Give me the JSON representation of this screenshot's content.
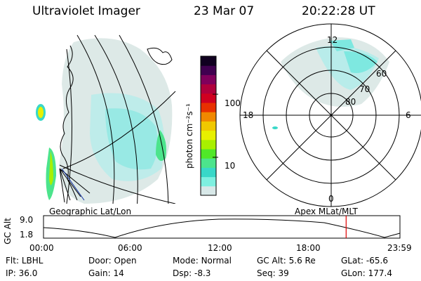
{
  "header": {
    "instrument": "Ultraviolet Imager",
    "date": "23 Mar 07",
    "time": "20:22:28 UT"
  },
  "colorbar": {
    "unit_label": "photon cm⁻²s⁻¹",
    "tick_labels": [
      "100",
      "10"
    ],
    "tick_values": [
      100,
      10
    ],
    "range": [
      2.5,
      400
    ],
    "colors": [
      "#d8e8e8",
      "#7ef0e0",
      "#38d8c8",
      "#4ce48c",
      "#50e828",
      "#a8f000",
      "#e8f000",
      "#f0c800",
      "#f08800",
      "#e83000",
      "#d00020",
      "#b0003c",
      "#80005c",
      "#400050",
      "#100020"
    ]
  },
  "geo_panel": {
    "label": "Geographic Lat/Lon"
  },
  "polar_panel": {
    "label": "Apex MLat/MLT",
    "mlt_labels": {
      "top": "12",
      "left": "18",
      "right": "6",
      "bottom": "0"
    },
    "lat_labels": [
      "80",
      "70",
      "60"
    ]
  },
  "altitude_plot": {
    "axis_label": "GC Alt",
    "y_ticks": [
      "9.0",
      "1.8"
    ],
    "x_ticks": [
      "00:00",
      "06:00",
      "12:00",
      "18:00",
      "23:59"
    ],
    "cursor_time": "20:22:28",
    "cursor_color": "#e00000"
  },
  "status": {
    "filter_label": "Flt:",
    "filter_value": "LBHL",
    "door_label": "Door:",
    "door_value": "Open",
    "mode_label": "Mode:",
    "mode_value": "Normal",
    "gcalt_label": "GC Alt:",
    "gcalt_value": "5.6 Re",
    "glat_label": "GLat:",
    "glat_value": "-65.6",
    "ip_label": "IP:",
    "ip_value": "36.0",
    "gain_label": "Gain:",
    "gain_value": "14",
    "dsp_label": "Dsp:",
    "dsp_value": "-8.3",
    "seq_label": "Seq:",
    "seq_value": "39",
    "glon_label": "GLon:",
    "glon_value": "177.4"
  }
}
